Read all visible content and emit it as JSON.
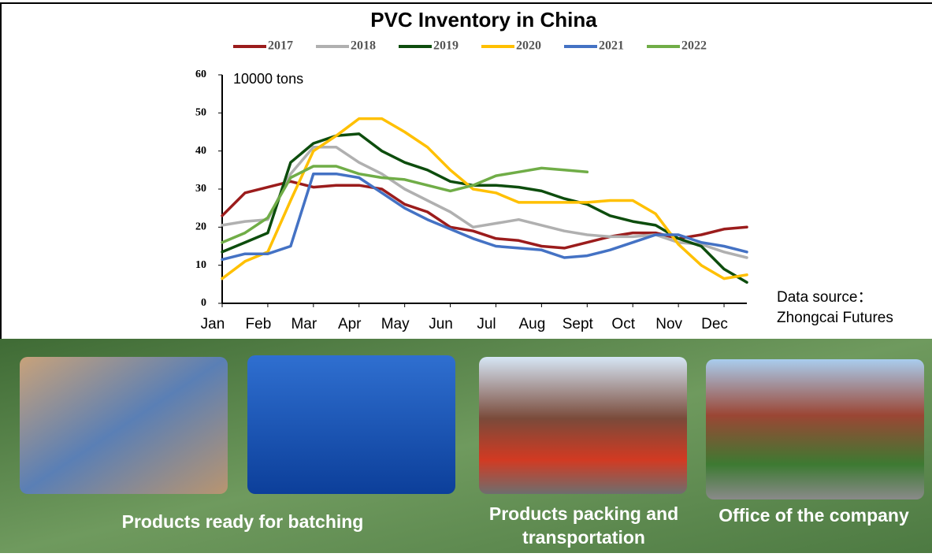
{
  "chart_data": {
    "type": "line",
    "title": "PVC Inventory in China",
    "y_label": "10000 tons",
    "source": [
      "Data source：",
      "Zhongcai Futures"
    ],
    "x": [
      0,
      0.5,
      1,
      1.5,
      2,
      2.5,
      3,
      3.5,
      4,
      4.5,
      5,
      5.5,
      6,
      6.5,
      7,
      7.5,
      8,
      8.5,
      9,
      9.5,
      10,
      10.5,
      11,
      11.5
    ],
    "xlim": [
      0,
      11.5
    ],
    "xticks": [
      {
        "value": 0,
        "label": "Jan"
      },
      {
        "value": 1,
        "label": "Feb"
      },
      {
        "value": 2,
        "label": "Mar"
      },
      {
        "value": 3,
        "label": "Apr"
      },
      {
        "value": 4,
        "label": "May"
      },
      {
        "value": 5,
        "label": "Jun"
      },
      {
        "value": 6,
        "label": "Jul"
      },
      {
        "value": 7,
        "label": "Aug"
      },
      {
        "value": 8,
        "label": "Sept"
      },
      {
        "value": 9,
        "label": "Oct"
      },
      {
        "value": 10,
        "label": "Nov"
      },
      {
        "value": 11,
        "label": "Dec"
      }
    ],
    "ylim": [
      0,
      60
    ],
    "yticks": [
      0,
      10,
      20,
      30,
      40,
      50,
      60
    ],
    "grid": false,
    "series": [
      {
        "name": "2017",
        "color": "#9b1c1c",
        "values": [
          23,
          29,
          30.5,
          32,
          30.5,
          31,
          31,
          30,
          26,
          24,
          20,
          19,
          17,
          16.5,
          15,
          14.5,
          16,
          17.5,
          18.5,
          18.5,
          17,
          18,
          19.5,
          20
        ]
      },
      {
        "name": "2018",
        "color": "#b0b0b0",
        "values": [
          20.5,
          21.5,
          22,
          34,
          41,
          41,
          37,
          34,
          30,
          27,
          24,
          20,
          21,
          22,
          20.5,
          19,
          18,
          17.5,
          17.5,
          18,
          16,
          15.5,
          13.5,
          12
        ]
      },
      {
        "name": "2019",
        "color": "#0d4d0d",
        "values": [
          13.5,
          16,
          18.5,
          37,
          42,
          44,
          44.5,
          40,
          37,
          35,
          32,
          31,
          31,
          30.5,
          29.5,
          27.5,
          26,
          23,
          21.5,
          20.5,
          17,
          15,
          9,
          5.5
        ]
      },
      {
        "name": "2020",
        "color": "#ffc000",
        "values": [
          6.5,
          11,
          13.5,
          27,
          40,
          44,
          48.5,
          48.5,
          45,
          41,
          35,
          30,
          29,
          26.5,
          26.5,
          26.5,
          26.5,
          27,
          27,
          23.5,
          15.5,
          10,
          6.5,
          7.5
        ]
      },
      {
        "name": "2021",
        "color": "#4472c4",
        "values": [
          11.5,
          13,
          13,
          15,
          34,
          34,
          33,
          29,
          25,
          22,
          19.5,
          17,
          15,
          14.5,
          14,
          12,
          12.5,
          14,
          16,
          18,
          18,
          16,
          15,
          13.5
        ]
      },
      {
        "name": "2022",
        "color": "#70ad47",
        "values": [
          16,
          18.5,
          22.5,
          33,
          36,
          36,
          34,
          33,
          32.5,
          31,
          29.5,
          31,
          33.5,
          34.5,
          35.5,
          35,
          34.5,
          null,
          null,
          null,
          null,
          null,
          null,
          null
        ]
      }
    ]
  },
  "panels": [
    {
      "caption": "Products ready for batching"
    },
    {
      "caption": "Products packing and transportation"
    },
    {
      "caption": "Office of the company"
    }
  ]
}
